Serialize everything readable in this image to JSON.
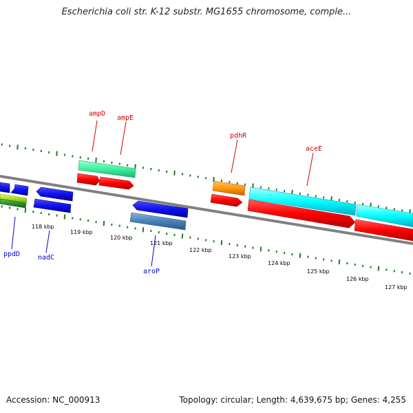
{
  "title": "Escherichia coli str. K-12 substr. MG1655 chromosome, comple...",
  "footer": {
    "accession": "Accession: NC_000913",
    "topology": "Topology: circular; Length: 4,639,675 bp; Genes: 4,255"
  },
  "scale_labels": [
    "118 kbp",
    "119 kbp",
    "120 kbp",
    "121 kbp",
    "122 kbp",
    "123 kbp",
    "124 kbp",
    "125 kbp",
    "126 kbp",
    "127 kbp"
  ],
  "gene_labels": {
    "top": [
      "ampD",
      "ampE",
      "pdhR",
      "aceE"
    ],
    "bottom": [
      "ppdD",
      "nadC",
      "aroP"
    ]
  },
  "colors": {
    "top_label": "#cc0000",
    "bottom_label": "#0000cc",
    "tick": "#1f7a1f",
    "backbone": "#808080"
  }
}
